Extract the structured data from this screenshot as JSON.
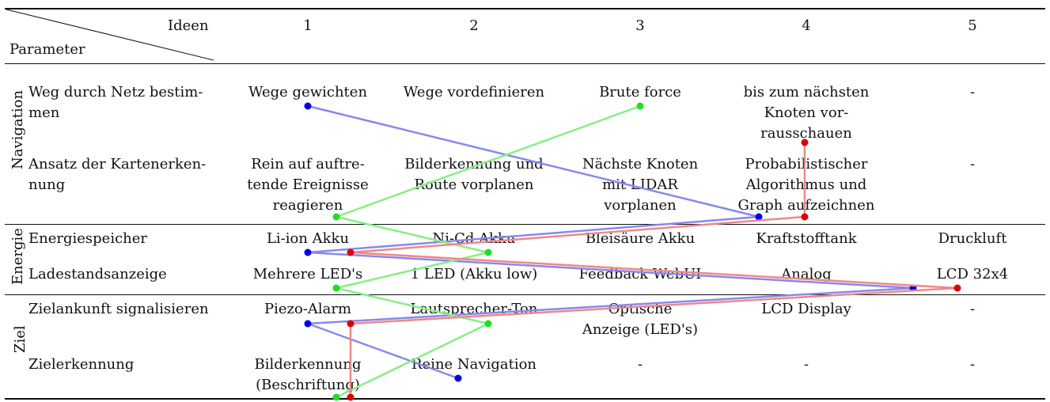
{
  "header": {
    "ideas_label": "Ideen",
    "parameter_label": "Parameter",
    "idea_numbers": [
      "1",
      "2",
      "3",
      "4",
      "5"
    ]
  },
  "groups": [
    {
      "label": "Navigation",
      "rows": [
        {
          "parameter": [
            "Weg durch Netz bestim-",
            "men"
          ],
          "cells": [
            [
              "Wege gewichten"
            ],
            [
              "Wege vordefinieren"
            ],
            [
              "Brute force"
            ],
            [
              "bis zum nächsten",
              "Knoten vor-",
              "rausschauen"
            ],
            [
              "-"
            ]
          ]
        },
        {
          "parameter": [
            "Ansatz der Kartenerken-",
            "nung"
          ],
          "cells": [
            [
              "Rein auf auftre-",
              "tende Ereignisse",
              "reagieren"
            ],
            [
              "Bilderkennung und",
              "Route vorplanen"
            ],
            [
              "Nächste Knoten",
              "mit LIDAR",
              "vorplanen"
            ],
            [
              "Probabilistischer",
              "Algorithmus und",
              "Graph aufzeichnen"
            ],
            [
              "-"
            ]
          ]
        }
      ]
    },
    {
      "label": "Energie",
      "rows": [
        {
          "parameter": [
            "Energiespeicher"
          ],
          "cells": [
            [
              "Li-ion Akku"
            ],
            [
              "Ni-Cd Akku"
            ],
            [
              "Bleisäure Akku"
            ],
            [
              "Kraftstofftank"
            ],
            [
              "Druckluft"
            ]
          ]
        },
        {
          "parameter": [
            "Ladestandsanzeige"
          ],
          "cells": [
            [
              "Mehrere LED's"
            ],
            [
              "1 LED (Akku low)"
            ],
            [
              "Feedback WebUI"
            ],
            [
              "Analog"
            ],
            [
              "LCD 32x4"
            ]
          ]
        }
      ]
    },
    {
      "label": "Ziel",
      "rows": [
        {
          "parameter": [
            "Zielankunft signalisieren"
          ],
          "cells": [
            [
              "Piezo-Alarm"
            ],
            [
              "Lautsprecher-Ton"
            ],
            [
              "Optische",
              "Anzeige (LED's)"
            ],
            [
              "LCD Display"
            ],
            [
              "-"
            ]
          ]
        },
        {
          "parameter": [
            "Zielerkennung"
          ],
          "cells": [
            [
              "Bilderkennung",
              "(Beschriftung)"
            ],
            [
              "Reine Navigation"
            ],
            [
              "-"
            ],
            [
              "-"
            ],
            [
              "-"
            ]
          ]
        }
      ]
    }
  ],
  "paths": [
    {
      "color": "#8888ee",
      "dot": "#0000ee",
      "selection": [
        1,
        4,
        1,
        5,
        1,
        2
      ]
    },
    {
      "color": "#88ee88",
      "dot": "#22dd22",
      "selection": [
        3,
        1,
        2,
        1,
        2,
        1
      ]
    },
    {
      "color": "#ee8888",
      "dot": "#dd0000",
      "selection": [
        4,
        4,
        1,
        5,
        1,
        1
      ]
    }
  ]
}
